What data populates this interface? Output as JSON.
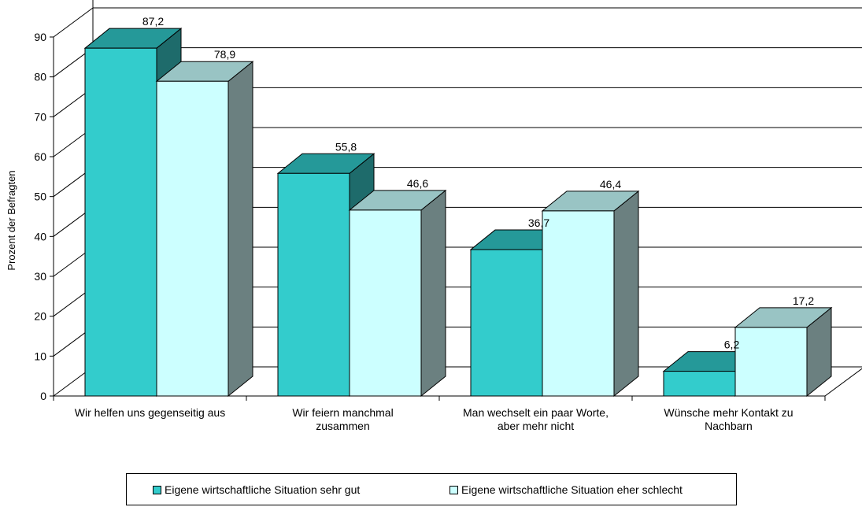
{
  "chart_data": {
    "type": "bar",
    "categories": [
      [
        "Wir helfen uns gegenseitig aus"
      ],
      [
        "Wir feiern manchmal",
        "zusammen"
      ],
      [
        "Man wechselt ein paar Worte,",
        "aber mehr nicht"
      ],
      [
        "Wünsche mehr Kontakt zu",
        "Nachbarn"
      ]
    ],
    "series": [
      {
        "name": "Eigene wirtschaftliche Situation sehr gut",
        "values": [
          87.2,
          55.8,
          36.7,
          6.2
        ],
        "labels": [
          "87,2",
          "55,8",
          "36,7",
          "6,2"
        ],
        "color": "#33cccc"
      },
      {
        "name": "Eigene wirtschaftliche Situation eher schlecht",
        "values": [
          78.9,
          46.6,
          46.4,
          17.2
        ],
        "labels": [
          "78,9",
          "46,6",
          "46,4",
          "17,2"
        ],
        "color": "#ccffff"
      }
    ],
    "ylabel": "Prozent der  Befragten",
    "ylim": [
      0,
      90
    ],
    "yticks": [
      0,
      10,
      20,
      30,
      40,
      50,
      60,
      70,
      80,
      90
    ],
    "grid": true,
    "legend_position": "bottom",
    "style": "3d-clustered-column"
  },
  "legend": {
    "items": [
      {
        "label": "Eigene wirtschaftliche Situation sehr gut",
        "color": "#33cccc"
      },
      {
        "label": "Eigene wirtschaftliche Situation eher schlecht",
        "color": "#ccffff"
      }
    ]
  }
}
